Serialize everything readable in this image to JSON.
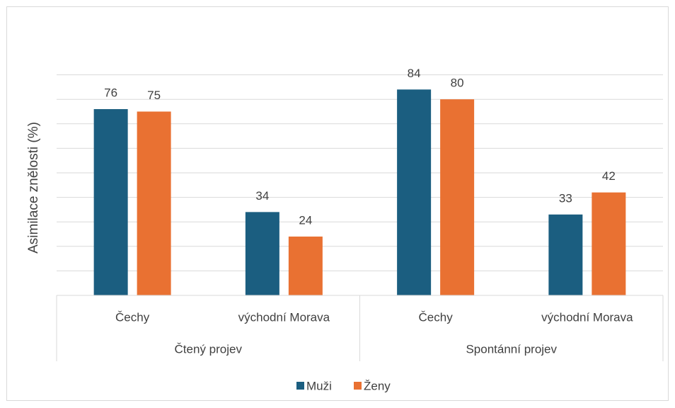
{
  "chart_data": {
    "type": "bar",
    "y_axis_label": "Asimilace znělosti (%)",
    "groups": [
      {
        "name": "Čtený projev",
        "categories": [
          "Čechy",
          "východní Morava"
        ]
      },
      {
        "name": "Spontánní projev",
        "categories": [
          "Čechy",
          "východní Morava"
        ]
      }
    ],
    "series": [
      {
        "name": "Muži",
        "color": "#1b5e80",
        "values": [
          76,
          34,
          84,
          33
        ]
      },
      {
        "name": "Ženy",
        "color": "#e97132",
        "values": [
          75,
          24,
          80,
          42
        ]
      }
    ],
    "ylim": [
      0,
      90
    ],
    "yticks": [
      0,
      10,
      20,
      30,
      40,
      50,
      60,
      70,
      80,
      90
    ],
    "grid": true,
    "legend": "bottom"
  }
}
